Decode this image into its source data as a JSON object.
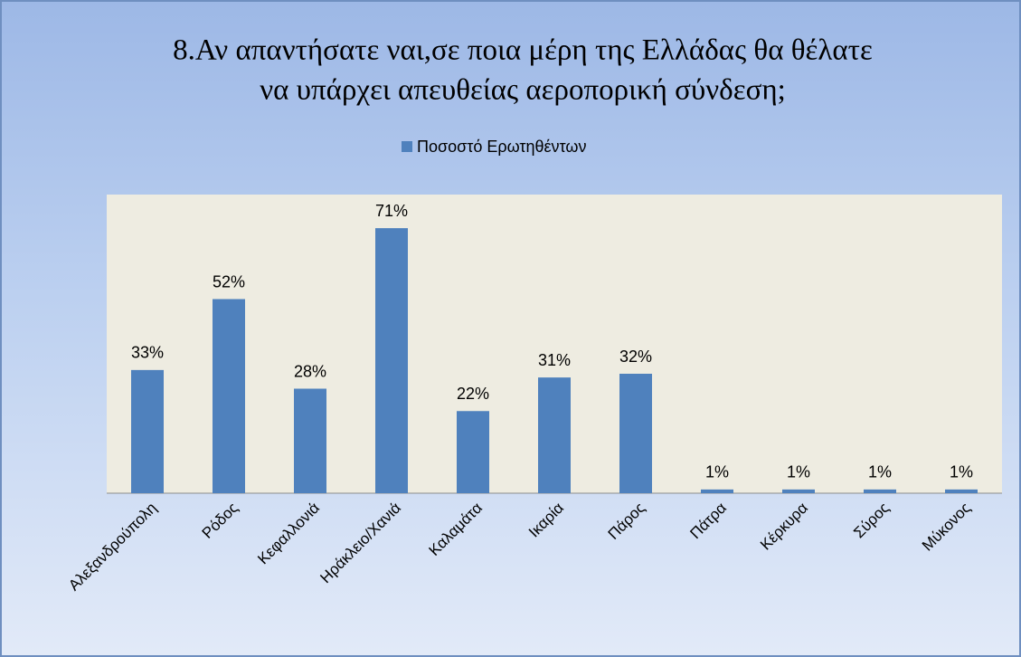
{
  "chart_data": {
    "type": "bar",
    "title": [
      "8.Αν απαντήσατε ναι,σε ποια μέρη της Ελλάδας θα θέλατε",
      "να υπάρχει απευθείας αεροπορική σύνδεση;"
    ],
    "categories": [
      "Αλεξανδρούπολη",
      "Ρόδος",
      "Κεφαλλονιά",
      "Ηράκλειο/Χανιά",
      "Καλαμάτα",
      "Ικαρία",
      "Πάρος",
      "Πάτρα",
      "Κέρκυρα",
      "Σύρος",
      "Μύκονος"
    ],
    "series": [
      {
        "name": "Ποσοστό Ερωτηθέντων",
        "color": "#4f81bd",
        "values": [
          33,
          52,
          28,
          71,
          22,
          31,
          32,
          1,
          1,
          1,
          1
        ],
        "value_labels": [
          "33%",
          "52%",
          "28%",
          "71%",
          "22%",
          "31%",
          "32%",
          "1%",
          "1%",
          "1%",
          "1%"
        ]
      }
    ],
    "ylim": [
      0,
      80
    ],
    "legend": "top"
  }
}
